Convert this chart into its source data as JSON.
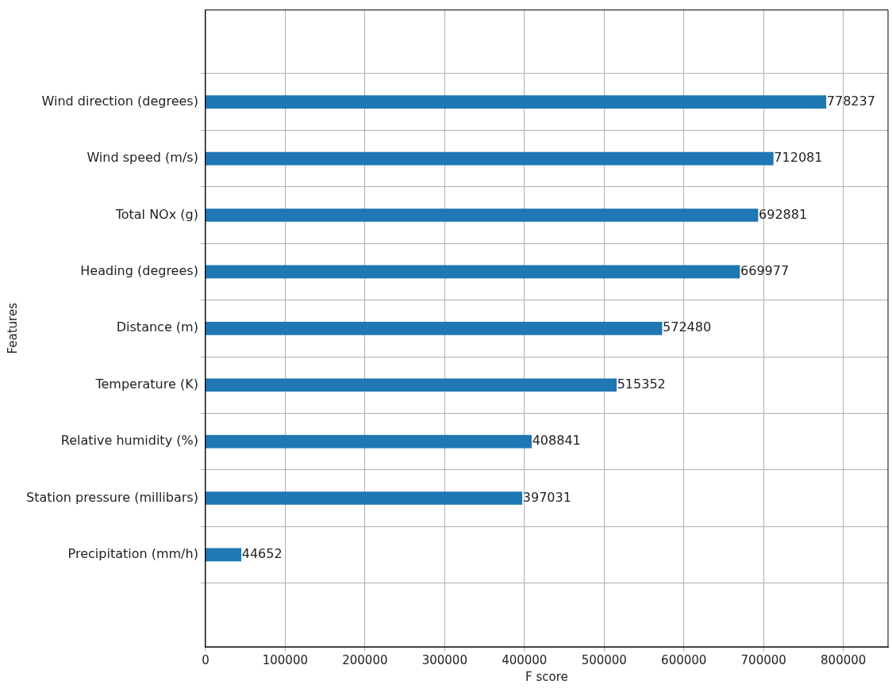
{
  "chart_data": {
    "type": "bar",
    "orientation": "horizontal",
    "xlabel": "F score",
    "ylabel": "Features",
    "categories": [
      "Wind direction (degrees)",
      "Wind speed (m/s)",
      "Total NOx (g)",
      "Heading (degrees)",
      "Distance (m)",
      "Temperature (K)",
      "Relative humidity (%)",
      "Station pressure (millibars)",
      "Precipitation (mm/h)"
    ],
    "values": [
      778237,
      712081,
      692881,
      669977,
      572480,
      515352,
      408841,
      397031,
      44652
    ],
    "color": "#1f77b4",
    "data_labels": true,
    "xlim": [
      0,
      856061
    ],
    "xticks": [
      0,
      100000,
      200000,
      300000,
      400000,
      500000,
      600000,
      700000,
      800000
    ],
    "grid": true,
    "legend": false
  }
}
